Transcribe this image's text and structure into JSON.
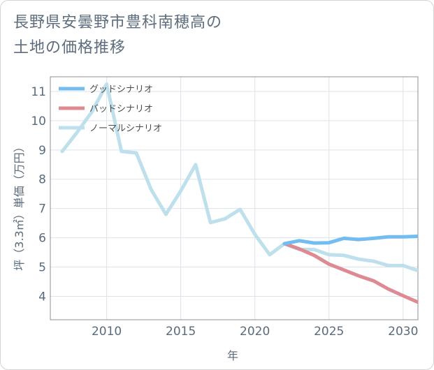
{
  "title_lines": [
    "長野県安曇野市豊科南穂高の",
    "土地の価格推移"
  ],
  "chart_data": {
    "type": "line",
    "xlabel": "年",
    "ylabel": "坪（3.3㎡）単価（万円）",
    "xlim": [
      2006.2,
      2031.0
    ],
    "ylim": [
      3.2,
      11.5
    ],
    "x_ticks": [
      2010,
      2015,
      2020,
      2025,
      2030
    ],
    "y_ticks": [
      4,
      5,
      6,
      7,
      8,
      9,
      10,
      11
    ],
    "grid": true,
    "legend_position": "top-left",
    "series": [
      {
        "name": "グッドシナリオ",
        "color": "#72bcef",
        "x": [
          2022,
          2023,
          2024,
          2025,
          2026,
          2027,
          2028,
          2029,
          2030,
          2031
        ],
        "y": [
          5.8,
          5.9,
          5.82,
          5.83,
          5.98,
          5.94,
          5.98,
          6.03,
          6.03,
          6.05
        ]
      },
      {
        "name": "バッドシナリオ",
        "color": "#de8a92",
        "x": [
          2022,
          2023,
          2024,
          2025,
          2026,
          2027,
          2028,
          2029,
          2030,
          2031
        ],
        "y": [
          5.8,
          5.62,
          5.4,
          5.1,
          4.9,
          4.7,
          4.53,
          4.25,
          4.02,
          3.8
        ]
      },
      {
        "name": "ノーマルシナリオ",
        "color": "#bde0ec",
        "x": [
          2007,
          2008,
          2009,
          2010,
          2011,
          2012,
          2013,
          2014,
          2015,
          2016,
          2017,
          2018,
          2019,
          2020,
          2021,
          2022,
          2023,
          2024,
          2025,
          2026,
          2027,
          2028,
          2029,
          2030,
          2031
        ],
        "y": [
          8.95,
          9.6,
          10.3,
          11.25,
          8.95,
          8.9,
          7.65,
          6.8,
          7.6,
          8.5,
          6.52,
          6.65,
          6.97,
          6.12,
          5.42,
          5.8,
          5.6,
          5.6,
          5.42,
          5.4,
          5.27,
          5.2,
          5.05,
          5.05,
          4.88
        ]
      }
    ]
  }
}
